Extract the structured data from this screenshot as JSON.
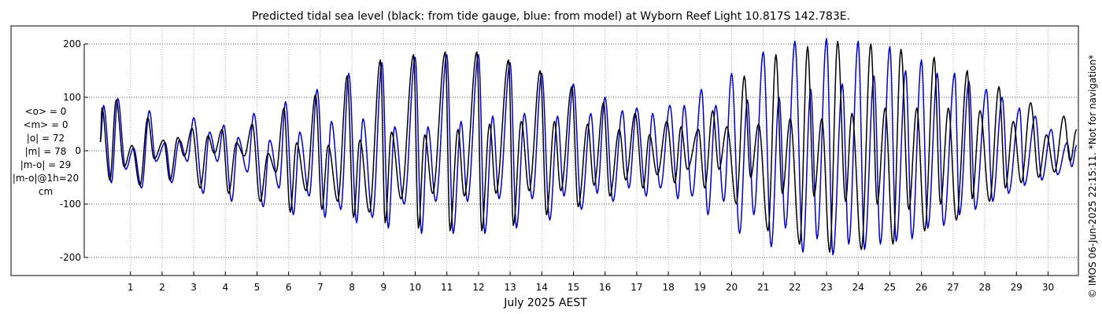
{
  "chart_data": {
    "type": "line",
    "title": "Predicted tidal sea level (black: from tide gauge, blue: from model) at Wyborn Reef Light 10.817S 142.783E.",
    "xlabel": "July 2025 AEST",
    "ylabel": "",
    "xlim": [
      0,
      31
    ],
    "ylim": [
      -230,
      235
    ],
    "x_ticks": [
      1,
      2,
      3,
      4,
      5,
      6,
      7,
      8,
      9,
      10,
      11,
      12,
      13,
      14,
      15,
      16,
      17,
      18,
      19,
      20,
      21,
      22,
      23,
      24,
      25,
      26,
      27,
      28,
      29,
      30
    ],
    "x_tick_labels": [
      "1",
      "2",
      "3",
      "4",
      "5",
      "6",
      "7",
      "8",
      "9",
      "10",
      "11",
      "12",
      "13",
      "14",
      "15",
      "16",
      "17",
      "18",
      "19",
      "20",
      "21",
      "22",
      "23",
      "24",
      "25",
      "26",
      "27",
      "28",
      "29",
      "30"
    ],
    "y_ticks": [
      -200,
      -100,
      0,
      100,
      200
    ],
    "y_tick_labels": [
      "-200",
      "-100",
      "0",
      "100",
      "200"
    ],
    "grid": true,
    "series": [
      {
        "name": "black: from tide gauge",
        "color": "#000000",
        "x_start": 0.05,
        "x_end": 30.9,
        "high": [
          [
            0.1,
            80
          ],
          [
            0.55,
            95
          ],
          [
            1.05,
            10
          ],
          [
            1.55,
            62
          ],
          [
            2.05,
            20
          ],
          [
            2.5,
            25
          ],
          [
            2.95,
            42
          ],
          [
            3.45,
            28
          ],
          [
            3.9,
            40
          ],
          [
            4.35,
            15
          ],
          [
            4.85,
            50
          ],
          [
            5.35,
            -5
          ],
          [
            5.85,
            80
          ],
          [
            6.25,
            15
          ],
          [
            6.85,
            105
          ],
          [
            7.25,
            10
          ],
          [
            7.85,
            140
          ],
          [
            8.25,
            20
          ],
          [
            8.9,
            170
          ],
          [
            9.25,
            35
          ],
          [
            9.95,
            180
          ],
          [
            10.3,
            30
          ],
          [
            10.95,
            185
          ],
          [
            11.35,
            40
          ],
          [
            11.95,
            185
          ],
          [
            12.35,
            50
          ],
          [
            12.95,
            170
          ],
          [
            13.35,
            55
          ],
          [
            13.95,
            150
          ],
          [
            14.4,
            55
          ],
          [
            14.95,
            120
          ],
          [
            15.45,
            50
          ],
          [
            15.95,
            90
          ],
          [
            16.45,
            40
          ],
          [
            16.95,
            70
          ],
          [
            17.4,
            30
          ],
          [
            17.95,
            55
          ],
          [
            18.4,
            45
          ],
          [
            18.95,
            40
          ],
          [
            19.4,
            75
          ],
          [
            19.85,
            45
          ],
          [
            20.4,
            140
          ],
          [
            20.85,
            50
          ],
          [
            21.4,
            180
          ],
          [
            21.85,
            60
          ],
          [
            22.4,
            195
          ],
          [
            22.85,
            60
          ],
          [
            23.35,
            205
          ],
          [
            23.8,
            70
          ],
          [
            24.4,
            200
          ],
          [
            24.85,
            80
          ],
          [
            25.35,
            190
          ],
          [
            25.85,
            80
          ],
          [
            26.4,
            175
          ],
          [
            26.85,
            80
          ],
          [
            27.45,
            150
          ],
          [
            27.85,
            75
          ],
          [
            28.45,
            120
          ],
          [
            28.9,
            55
          ],
          [
            29.45,
            90
          ],
          [
            29.95,
            30
          ],
          [
            30.5,
            65
          ],
          [
            30.9,
            40
          ]
        ],
        "low": [
          [
            0.35,
            -55
          ],
          [
            0.8,
            -30
          ],
          [
            1.3,
            -65
          ],
          [
            1.75,
            -15
          ],
          [
            2.25,
            -55
          ],
          [
            2.7,
            -10
          ],
          [
            3.2,
            -70
          ],
          [
            3.65,
            -5
          ],
          [
            4.1,
            -80
          ],
          [
            4.6,
            -10
          ],
          [
            5.1,
            -95
          ],
          [
            5.6,
            -40
          ],
          [
            6.05,
            -115
          ],
          [
            6.55,
            -75
          ],
          [
            7.05,
            -110
          ],
          [
            7.55,
            -95
          ],
          [
            8.05,
            -125
          ],
          [
            8.55,
            -115
          ],
          [
            9.05,
            -135
          ],
          [
            9.55,
            -90
          ],
          [
            10.1,
            -145
          ],
          [
            10.55,
            -80
          ],
          [
            11.1,
            -150
          ],
          [
            11.55,
            -85
          ],
          [
            12.1,
            -150
          ],
          [
            12.55,
            -80
          ],
          [
            13.1,
            -140
          ],
          [
            13.6,
            -75
          ],
          [
            14.15,
            -120
          ],
          [
            14.6,
            -75
          ],
          [
            15.15,
            -105
          ],
          [
            15.65,
            -65
          ],
          [
            16.15,
            -85
          ],
          [
            16.65,
            -55
          ],
          [
            17.2,
            -70
          ],
          [
            17.65,
            -45
          ],
          [
            18.2,
            -60
          ],
          [
            18.6,
            -35
          ],
          [
            19.15,
            -70
          ],
          [
            19.6,
            -35
          ],
          [
            20.15,
            -100
          ],
          [
            20.6,
            -50
          ],
          [
            21.15,
            -150
          ],
          [
            21.6,
            -80
          ],
          [
            22.15,
            -175
          ],
          [
            22.6,
            -85
          ],
          [
            23.1,
            -190
          ],
          [
            23.6,
            -95
          ],
          [
            24.1,
            -185
          ],
          [
            24.6,
            -100
          ],
          [
            25.1,
            -175
          ],
          [
            25.6,
            -110
          ],
          [
            26.1,
            -150
          ],
          [
            26.6,
            -100
          ],
          [
            27.1,
            -130
          ],
          [
            27.6,
            -90
          ],
          [
            28.15,
            -95
          ],
          [
            28.65,
            -70
          ],
          [
            29.15,
            -60
          ],
          [
            29.7,
            -50
          ],
          [
            30.2,
            -40
          ],
          [
            30.7,
            -20
          ]
        ]
      },
      {
        "name": "blue: from model",
        "color": "#0000cc",
        "x_start": 0.05,
        "x_end": 30.9,
        "high": [
          [
            0.15,
            85
          ],
          [
            0.6,
            98
          ],
          [
            1.1,
            5
          ],
          [
            1.6,
            75
          ],
          [
            2.1,
            15
          ],
          [
            2.55,
            20
          ],
          [
            3.0,
            62
          ],
          [
            3.5,
            35
          ],
          [
            3.95,
            48
          ],
          [
            4.4,
            25
          ],
          [
            4.9,
            70
          ],
          [
            5.4,
            20
          ],
          [
            5.9,
            92
          ],
          [
            6.35,
            35
          ],
          [
            6.9,
            115
          ],
          [
            7.35,
            55
          ],
          [
            7.9,
            145
          ],
          [
            8.35,
            60
          ],
          [
            8.95,
            165
          ],
          [
            9.35,
            45
          ],
          [
            10.0,
            175
          ],
          [
            10.4,
            45
          ],
          [
            11.0,
            180
          ],
          [
            11.45,
            55
          ],
          [
            12.0,
            180
          ],
          [
            12.45,
            65
          ],
          [
            13.0,
            165
          ],
          [
            13.45,
            70
          ],
          [
            14.0,
            145
          ],
          [
            14.5,
            65
          ],
          [
            15.0,
            125
          ],
          [
            15.55,
            70
          ],
          [
            16.0,
            100
          ],
          [
            16.55,
            75
          ],
          [
            17.0,
            80
          ],
          [
            17.5,
            70
          ],
          [
            18.05,
            85
          ],
          [
            18.5,
            85
          ],
          [
            19.05,
            115
          ],
          [
            19.5,
            85
          ],
          [
            20.0,
            145
          ],
          [
            20.5,
            95
          ],
          [
            21.0,
            185
          ],
          [
            21.5,
            100
          ],
          [
            22.0,
            205
          ],
          [
            22.5,
            115
          ],
          [
            23.0,
            210
          ],
          [
            23.5,
            125
          ],
          [
            24.0,
            205
          ],
          [
            24.5,
            140
          ],
          [
            25.0,
            195
          ],
          [
            25.5,
            150
          ],
          [
            26.0,
            170
          ],
          [
            26.5,
            145
          ],
          [
            27.05,
            145
          ],
          [
            27.5,
            130
          ],
          [
            28.05,
            115
          ],
          [
            28.55,
            100
          ],
          [
            29.1,
            80
          ],
          [
            29.6,
            65
          ],
          [
            30.1,
            40
          ],
          [
            30.6,
            15
          ],
          [
            30.9,
            10
          ]
        ],
        "low": [
          [
            0.4,
            -60
          ],
          [
            0.85,
            -35
          ],
          [
            1.35,
            -70
          ],
          [
            1.8,
            -20
          ],
          [
            2.3,
            -60
          ],
          [
            2.8,
            -20
          ],
          [
            3.3,
            -80
          ],
          [
            3.75,
            -20
          ],
          [
            4.2,
            -95
          ],
          [
            4.7,
            -40
          ],
          [
            5.2,
            -105
          ],
          [
            5.7,
            -70
          ],
          [
            6.15,
            -120
          ],
          [
            6.65,
            -85
          ],
          [
            7.15,
            -125
          ],
          [
            7.65,
            -110
          ],
          [
            8.15,
            -135
          ],
          [
            8.65,
            -125
          ],
          [
            9.15,
            -145
          ],
          [
            9.65,
            -100
          ],
          [
            10.2,
            -155
          ],
          [
            10.65,
            -95
          ],
          [
            11.2,
            -155
          ],
          [
            11.65,
            -95
          ],
          [
            12.2,
            -155
          ],
          [
            12.65,
            -90
          ],
          [
            13.2,
            -145
          ],
          [
            13.7,
            -90
          ],
          [
            14.25,
            -130
          ],
          [
            14.7,
            -85
          ],
          [
            15.25,
            -110
          ],
          [
            15.75,
            -80
          ],
          [
            16.25,
            -95
          ],
          [
            16.75,
            -70
          ],
          [
            17.3,
            -85
          ],
          [
            17.75,
            -70
          ],
          [
            18.3,
            -90
          ],
          [
            18.75,
            -85
          ],
          [
            19.25,
            -120
          ],
          [
            19.75,
            -95
          ],
          [
            20.25,
            -155
          ],
          [
            20.7,
            -120
          ],
          [
            21.25,
            -180
          ],
          [
            21.7,
            -145
          ],
          [
            22.25,
            -190
          ],
          [
            22.7,
            -165
          ],
          [
            23.2,
            -195
          ],
          [
            23.7,
            -175
          ],
          [
            24.2,
            -185
          ],
          [
            24.7,
            -175
          ],
          [
            25.2,
            -170
          ],
          [
            25.7,
            -165
          ],
          [
            26.2,
            -145
          ],
          [
            26.7,
            -140
          ],
          [
            27.2,
            -120
          ],
          [
            27.7,
            -110
          ],
          [
            28.25,
            -95
          ],
          [
            28.75,
            -80
          ],
          [
            29.25,
            -65
          ],
          [
            29.8,
            -55
          ],
          [
            30.3,
            -45
          ],
          [
            30.75,
            -30
          ]
        ]
      }
    ]
  },
  "stats": {
    "lines": [
      "<o> = 0",
      "<m> = 0",
      "|o| = 72",
      "|m| = 78",
      "|m-o| = 29",
      "|m-o|@1h=20",
      "cm"
    ]
  },
  "notice": "© IMOS 06-Jun-2025 22:15:11. *Not for navigation*"
}
